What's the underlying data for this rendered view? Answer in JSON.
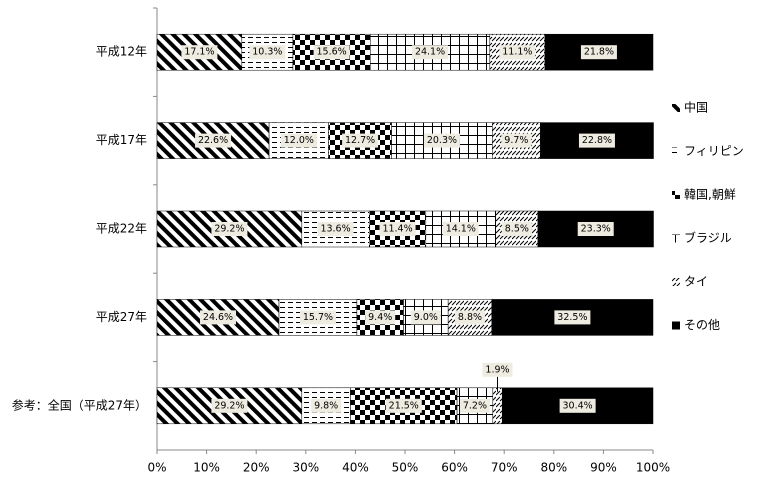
{
  "chart_data": {
    "type": "stacked-bar-horizontal",
    "categories": [
      "平成12年",
      "平成17年",
      "平成22年",
      "平成27年",
      "参考：全国（平成27年）"
    ],
    "series": [
      {
        "name": "中国",
        "color": "#000000",
        "values": [
          17.1,
          22.6,
          29.2,
          24.6,
          29.2
        ],
        "value_labels": [
          "17.1%",
          "22.6%",
          "29.2%",
          "24.6%",
          "29.2%"
        ]
      },
      {
        "name": "フィリピン",
        "color": "#000000",
        "values": [
          10.3,
          12.0,
          13.6,
          15.7,
          9.8
        ],
        "value_labels": [
          "10.3%",
          "12.0%",
          "13.6%",
          "15.7%",
          "9.8%"
        ]
      },
      {
        "name": "韓国,朝鮮",
        "color": "#000000",
        "values": [
          15.6,
          12.7,
          11.4,
          9.4,
          21.5
        ],
        "value_labels": [
          "15.6%",
          "12.7%",
          "11.4%",
          "9.4%",
          "21.5%"
        ]
      },
      {
        "name": "ブラジル",
        "color": "#000000",
        "values": [
          24.1,
          20.3,
          14.1,
          9.0,
          7.2
        ],
        "value_labels": [
          "24.1%",
          "20.3%",
          "14.1%",
          "9.0%",
          "7.2%"
        ]
      },
      {
        "name": "タイ",
        "color": "#000000",
        "values": [
          11.1,
          9.7,
          8.5,
          8.8,
          1.9
        ],
        "value_labels": [
          "11.1%",
          "9.7%",
          "8.5%",
          "8.8%",
          "1.9%"
        ]
      },
      {
        "name": "その他",
        "color": "#000000",
        "values": [
          21.8,
          22.8,
          23.3,
          32.5,
          30.4
        ],
        "value_labels": [
          "21.8%",
          "22.8%",
          "23.3%",
          "32.5%",
          "30.4%"
        ]
      }
    ],
    "xlim": [
      0,
      100
    ],
    "xticks": [
      {
        "value": 0,
        "label": "0%"
      },
      {
        "value": 10,
        "label": "10%"
      },
      {
        "value": 20,
        "label": "20%"
      },
      {
        "value": 30,
        "label": "30%"
      },
      {
        "value": 40,
        "label": "40%"
      },
      {
        "value": 50,
        "label": "50%"
      },
      {
        "value": 60,
        "label": "60%"
      },
      {
        "value": 70,
        "label": "70%"
      },
      {
        "value": 80,
        "label": "80%"
      },
      {
        "value": 90,
        "label": "90%"
      },
      {
        "value": 100,
        "label": "100%"
      }
    ],
    "legend": "right"
  }
}
